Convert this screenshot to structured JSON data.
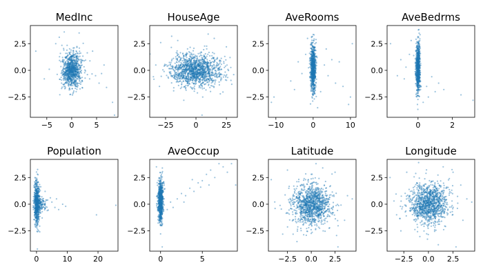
{
  "chart_data": [
    {
      "type": "scatter",
      "title": "MedInc",
      "xlim": [
        -8.3,
        9.3
      ],
      "ylim": [
        -4.4,
        4.2
      ],
      "xticks": [
        -5,
        0,
        5
      ],
      "xtick_labels": [
        "−5",
        "0",
        "5"
      ],
      "yticks": [
        -2.5,
        0,
        2.5
      ],
      "ytick_labels": [
        "−2.5",
        "0.0",
        "2.5"
      ],
      "marker_color": "#1f77b4",
      "cloud": [
        {
          "cx": 0.0,
          "cy": 0.0,
          "sx": 1.0,
          "sy": 0.85,
          "rho": 0.15,
          "n": 900
        }
      ],
      "points": [
        [
          -7.2,
          1.8
        ],
        [
          -3.2,
          2.5
        ],
        [
          -4.5,
          0.1
        ],
        [
          -2.5,
          3.1
        ],
        [
          3.6,
          -0.8
        ],
        [
          4.8,
          -0.5
        ],
        [
          5.5,
          -1.2
        ],
        [
          7.0,
          -1.6
        ],
        [
          8.2,
          -3.0
        ],
        [
          8.6,
          -4.2
        ],
        [
          6.0,
          -0.3
        ],
        [
          -1.5,
          3.6
        ],
        [
          1.5,
          3.5
        ],
        [
          6.5,
          0.5
        ],
        [
          -5.5,
          -0.8
        ],
        [
          4.2,
          1.8
        ]
      ]
    },
    {
      "type": "scatter",
      "title": "HouseAge",
      "xlim": [
        -38,
        34
      ],
      "ylim": [
        -4.4,
        4.2
      ],
      "xticks": [
        -25,
        0,
        25
      ],
      "xtick_labels": [
        "−25",
        "0",
        "25"
      ],
      "yticks": [
        -2.5,
        0,
        2.5
      ],
      "ytick_labels": [
        "−2.5",
        "0.0",
        "2.5"
      ],
      "marker_color": "#1f77b4",
      "cloud": [
        {
          "cx": 0,
          "cy": 0,
          "sx": 10.5,
          "sy": 0.75,
          "rho": 0,
          "n": 1300
        }
      ],
      "points": [
        [
          -33,
          0.5
        ],
        [
          -29,
          2.6
        ],
        [
          -35,
          -0.6
        ],
        [
          28,
          1.2
        ],
        [
          31,
          -0.4
        ],
        [
          -20,
          3.2
        ],
        [
          15,
          3.0
        ],
        [
          -10,
          -2.8
        ],
        [
          20,
          -2.2
        ],
        [
          -30,
          -1.5
        ],
        [
          25,
          2.2
        ],
        [
          5,
          -4.2
        ],
        [
          -15,
          2.8
        ],
        [
          10,
          3.4
        ]
      ]
    },
    {
      "type": "scatter",
      "title": "AveRooms",
      "xlim": [
        -12,
        11.5
      ],
      "ylim": [
        -4.4,
        4.2
      ],
      "xticks": [
        -10,
        0,
        10
      ],
      "xtick_labels": [
        "−10",
        "0",
        "10"
      ],
      "yticks": [
        -2.5,
        0,
        2.5
      ],
      "ytick_labels": [
        "−2.5",
        "0.0",
        "2.5"
      ],
      "marker_color": "#1f77b4",
      "cloud": [
        {
          "cx": 0,
          "cy": 0.2,
          "sx": 0.35,
          "sy": 1.1,
          "rho": 0,
          "n": 800
        }
      ],
      "points": [
        [
          -10.5,
          -2.5
        ],
        [
          -11.2,
          -3.0
        ],
        [
          -6,
          -1.0
        ],
        [
          -4,
          0.8
        ],
        [
          -3,
          -0.3
        ],
        [
          -5,
          -1.8
        ],
        [
          3,
          0.5
        ],
        [
          4,
          -0.5
        ],
        [
          5,
          1.0
        ],
        [
          8,
          -1.5
        ],
        [
          9.5,
          -3.2
        ],
        [
          10,
          -2.5
        ],
        [
          7,
          0.8
        ],
        [
          2,
          -2.0
        ],
        [
          6,
          -1.2
        ],
        [
          10.5,
          2.5
        ],
        [
          -1.5,
          3.0
        ],
        [
          1.2,
          -3.5
        ],
        [
          -2,
          1.5
        ],
        [
          3.5,
          2.0
        ]
      ]
    },
    {
      "type": "scatter",
      "title": "AveBedrms",
      "xlim": [
        -1.8,
        3.3
      ],
      "ylim": [
        -4.4,
        4.2
      ],
      "xticks": [
        0,
        2
      ],
      "xtick_labels": [
        "0",
        "2"
      ],
      "yticks": [
        -2.5,
        0,
        2.5
      ],
      "ytick_labels": [
        "−2.5",
        "0.0",
        "2.5"
      ],
      "marker_color": "#1f77b4",
      "cloud": [
        {
          "cx": 0,
          "cy": 0.2,
          "sx": 0.06,
          "sy": 1.1,
          "rho": 0,
          "n": 800
        }
      ],
      "points": [
        [
          -1.6,
          2.5
        ],
        [
          -1.0,
          1.0
        ],
        [
          -0.8,
          -0.8
        ],
        [
          -0.5,
          1.5
        ],
        [
          -1.2,
          -0.5
        ],
        [
          0.5,
          -1.5
        ],
        [
          1.0,
          -2.0
        ],
        [
          1.5,
          -1.8
        ],
        [
          2.5,
          -2.3
        ],
        [
          3.2,
          -2.8
        ],
        [
          0.8,
          -0.6
        ],
        [
          1.2,
          -1.2
        ],
        [
          -0.4,
          2.8
        ],
        [
          0.3,
          -3.0
        ],
        [
          0.6,
          -2.5
        ],
        [
          -0.7,
          0.3
        ]
      ]
    },
    {
      "type": "scatter",
      "title": "Population",
      "xlim": [
        -2.0,
        26.5
      ],
      "ylim": [
        -4.4,
        4.2
      ],
      "xticks": [
        0,
        10,
        20
      ],
      "xtick_labels": [
        "0",
        "10",
        "20"
      ],
      "yticks": [
        -2.5,
        0,
        2.5
      ],
      "ytick_labels": [
        "−2.5",
        "0.0",
        "2.5"
      ],
      "marker_color": "#1f77b4",
      "cloud": [
        {
          "cx": 0.1,
          "cy": 0.1,
          "sx": 0.4,
          "sy": 1.0,
          "rho": 0,
          "n": 650
        },
        {
          "cx": 1.5,
          "cy": 0.0,
          "sx": 1.0,
          "sy": 0.35,
          "rho": 0,
          "n": 120
        }
      ],
      "points": [
        [
          5,
          0.2
        ],
        [
          6,
          -0.3
        ],
        [
          7.2,
          -0.5
        ],
        [
          8.5,
          0.0
        ],
        [
          4.5,
          0.6
        ],
        [
          19.5,
          -1.0
        ],
        [
          25.8,
          -0.1
        ],
        [
          3.5,
          -0.6
        ],
        [
          0.3,
          -4.2
        ],
        [
          6.5,
          0.5
        ],
        [
          2.8,
          1.2
        ],
        [
          9.5,
          -0.2
        ]
      ]
    },
    {
      "type": "scatter",
      "title": "AveOccup",
      "xlim": [
        -1.3,
        9.2
      ],
      "ylim": [
        -4.4,
        4.2
      ],
      "xticks": [
        0,
        5
      ],
      "xtick_labels": [
        "0",
        "5"
      ],
      "yticks": [
        -2.5,
        0,
        2.5
      ],
      "ytick_labels": [
        "−2.5",
        "0.0",
        "2.5"
      ],
      "marker_color": "#1f77b4",
      "cloud": [
        {
          "cx": 0.0,
          "cy": 0.3,
          "sx": 0.15,
          "sy": 1.0,
          "rho": 0,
          "n": 800
        }
      ],
      "points": [
        [
          0.8,
          -0.5
        ],
        [
          1.2,
          0.2
        ],
        [
          1.5,
          -0.3
        ],
        [
          2.0,
          0.5
        ],
        [
          2.5,
          1.0
        ],
        [
          3.0,
          0.8
        ],
        [
          3.5,
          1.5
        ],
        [
          4.0,
          1.2
        ],
        [
          4.5,
          2.0
        ],
        [
          5.0,
          2.2
        ],
        [
          5.5,
          2.8
        ],
        [
          6.0,
          3.2
        ],
        [
          6.5,
          2.5
        ],
        [
          7.0,
          3.8
        ],
        [
          7.5,
          3.5
        ],
        [
          8.0,
          3.0
        ],
        [
          8.5,
          3.8
        ],
        [
          9.0,
          1.8
        ],
        [
          5.8,
          1.8
        ],
        [
          3.8,
          2.3
        ],
        [
          4.8,
          1.6
        ],
        [
          -0.5,
          3.5
        ],
        [
          0.2,
          -4.0
        ],
        [
          2.8,
          0.2
        ]
      ]
    },
    {
      "type": "scatter",
      "title": "Latitude",
      "xlim": [
        -4.5,
        4.7
      ],
      "ylim": [
        -4.4,
        4.2
      ],
      "xticks": [
        -2.5,
        0,
        2.5
      ],
      "xtick_labels": [
        "−2.5",
        "0.0",
        "2.5"
      ],
      "yticks": [
        -2.5,
        0,
        2.5
      ],
      "ytick_labels": [
        "−2.5",
        "0.0",
        "2.5"
      ],
      "marker_color": "#1f77b4",
      "cloud": [
        {
          "cx": 0,
          "cy": 0,
          "sx": 1.0,
          "sy": 0.95,
          "rho": -0.05,
          "n": 1150
        }
      ],
      "points": [
        [
          -4.2,
          2.3
        ],
        [
          3.8,
          0.8
        ],
        [
          4.3,
          0.5
        ],
        [
          -3.8,
          -0.4
        ],
        [
          2.5,
          3.0
        ],
        [
          -2.5,
          3.2
        ],
        [
          0.5,
          3.8
        ],
        [
          2.8,
          -4.0
        ],
        [
          -3.0,
          -2.8
        ],
        [
          3.5,
          -1.5
        ],
        [
          1.2,
          3.4
        ],
        [
          -1.5,
          -3.5
        ]
      ]
    },
    {
      "type": "scatter",
      "title": "Longitude",
      "xlim": [
        -4.2,
        4.7
      ],
      "ylim": [
        -4.4,
        4.2
      ],
      "xticks": [
        -2.5,
        0,
        2.5
      ],
      "xtick_labels": [
        "−2.5",
        "0.0",
        "2.5"
      ],
      "yticks": [
        -2.5,
        0,
        2.5
      ],
      "ytick_labels": [
        "−2.5",
        "0.0",
        "2.5"
      ],
      "marker_color": "#1f77b4",
      "cloud": [
        {
          "cx": 0,
          "cy": 0,
          "sx": 1.0,
          "sy": 0.95,
          "rho": 0.05,
          "n": 1150
        }
      ],
      "points": [
        [
          -3.9,
          2.5
        ],
        [
          -3.5,
          0.3
        ],
        [
          3.9,
          0.5
        ],
        [
          4.4,
          0.2
        ],
        [
          2.8,
          -4.0
        ],
        [
          -1.0,
          3.9
        ],
        [
          2.5,
          3.0
        ],
        [
          -2.8,
          -2.5
        ],
        [
          3.5,
          -1.5
        ],
        [
          1.5,
          3.5
        ],
        [
          -2.2,
          3.0
        ],
        [
          1.0,
          -3.8
        ]
      ]
    }
  ]
}
